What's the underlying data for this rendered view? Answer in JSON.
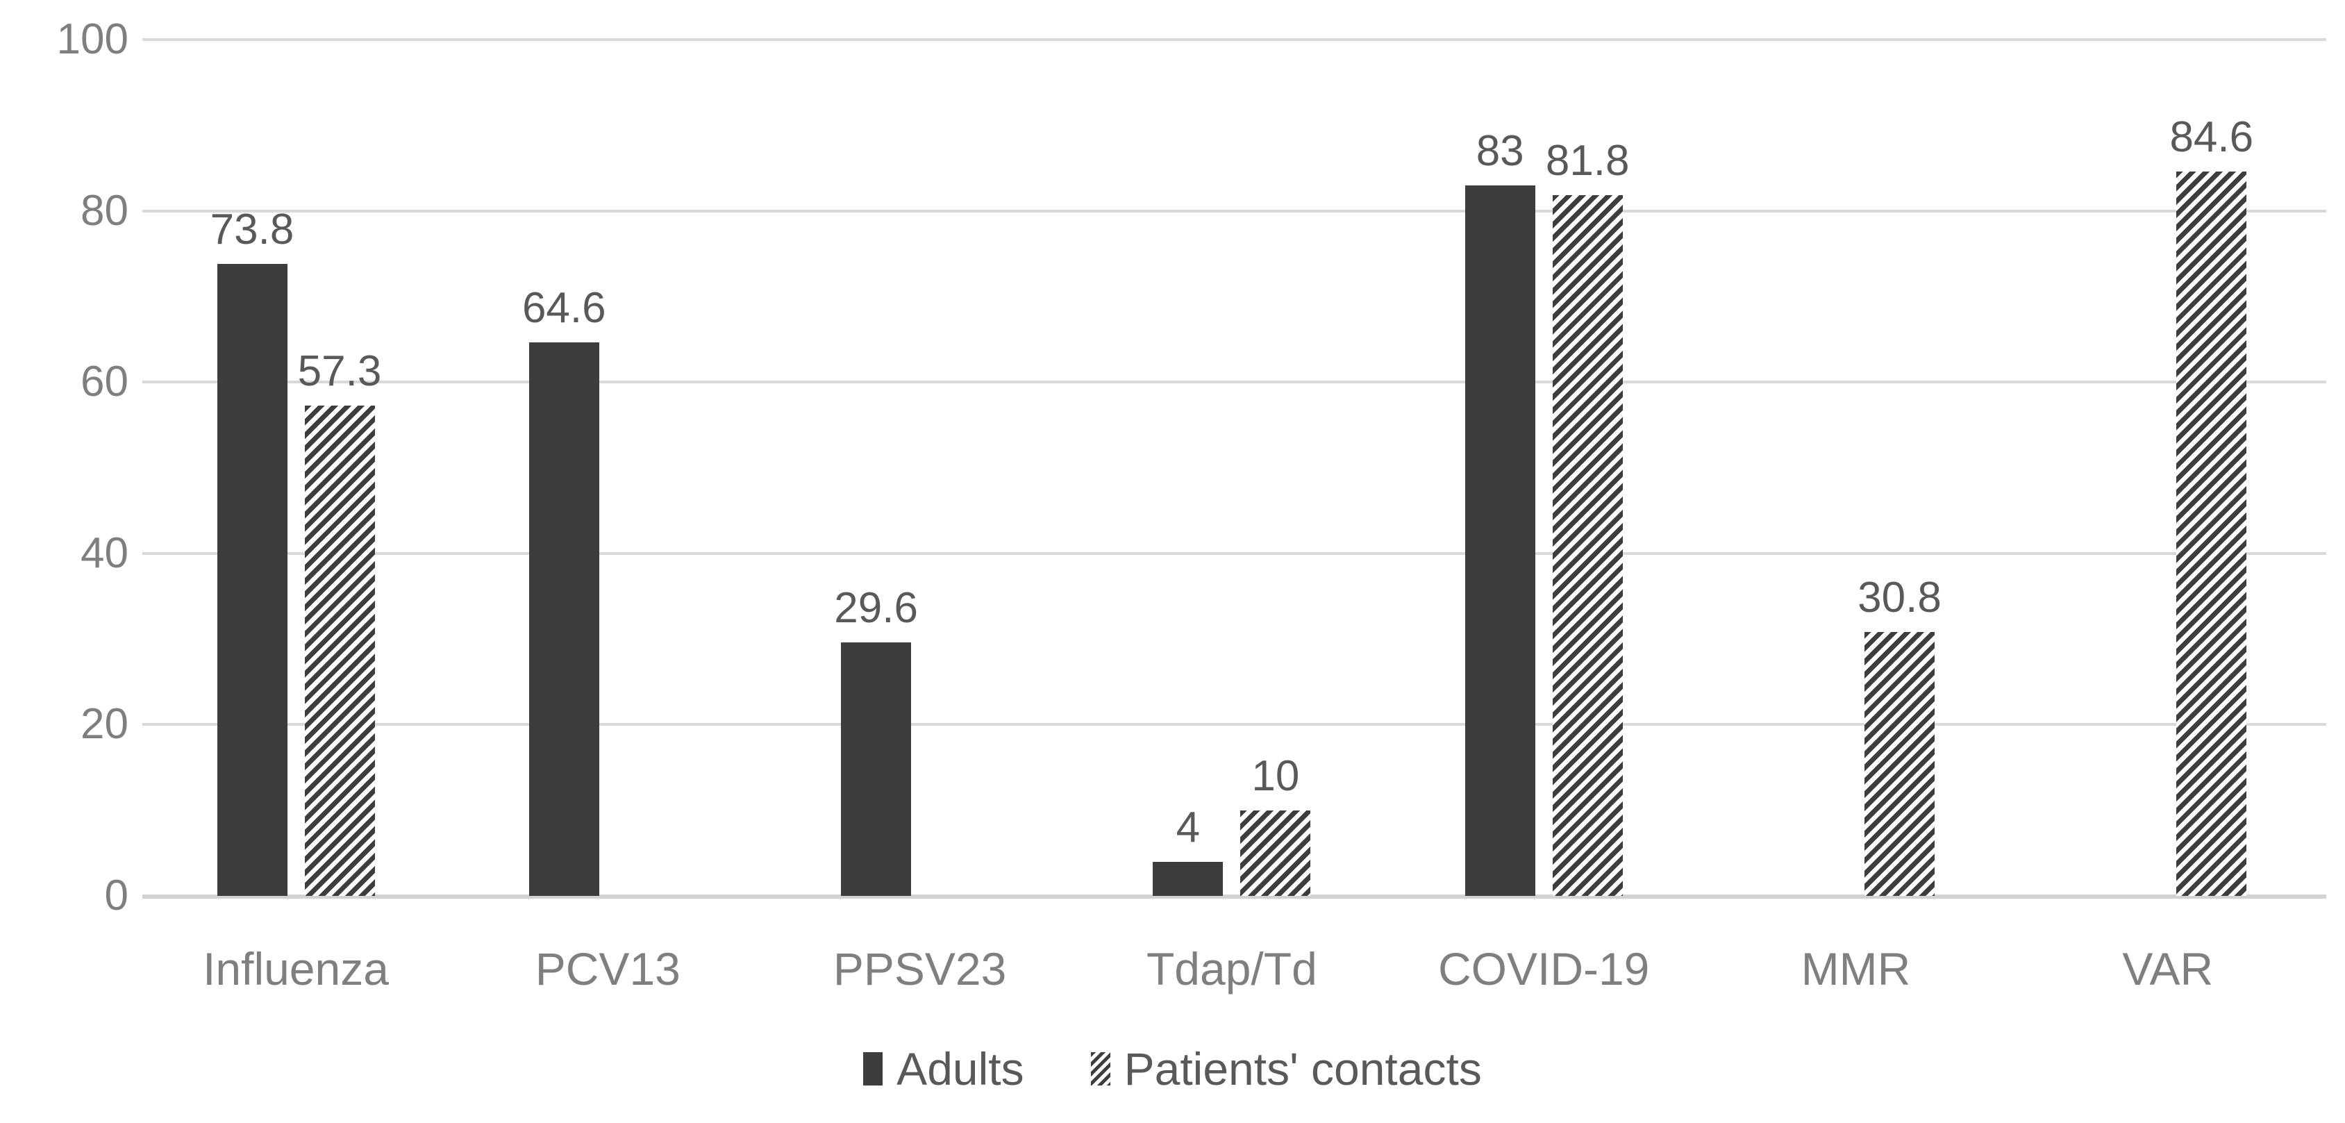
{
  "chart_data": {
    "type": "bar",
    "title": "",
    "categories": [
      "Influenza",
      "PCV13",
      "PPSV23",
      "Tdap/Td",
      "COVID-19",
      "MMR",
      "VAR"
    ],
    "series": [
      {
        "name": "Adults",
        "style": "solid",
        "values": [
          73.8,
          64.6,
          29.6,
          4,
          83,
          null,
          null
        ],
        "labels": [
          "73.8",
          "64.6",
          "29.6",
          "4",
          "83",
          null,
          null
        ]
      },
      {
        "name": "Patients' contacts",
        "style": "hatched",
        "values": [
          57.3,
          null,
          null,
          10,
          81.8,
          30.8,
          84.6
        ],
        "labels": [
          "57.3",
          null,
          null,
          "10",
          "81.8",
          "30.8",
          "84.6"
        ]
      }
    ],
    "y_axis": {
      "min": 0,
      "max": 100,
      "tick_interval": 20,
      "tick_labels": [
        "0",
        "20",
        "40",
        "60",
        "80",
        "100"
      ]
    },
    "grid": true,
    "data_labels": true,
    "legend_position": "bottom"
  },
  "colors": {
    "bar_fill": "#3d3d3d",
    "hatch_fill": "#3d3d3d",
    "gridline": "#d9d9d9",
    "axis_line": "#d2d2d2",
    "tick_text": "#7f7f7f",
    "value_label_text": "#595959",
    "legend_text": "#595959",
    "background": "#ffffff"
  }
}
